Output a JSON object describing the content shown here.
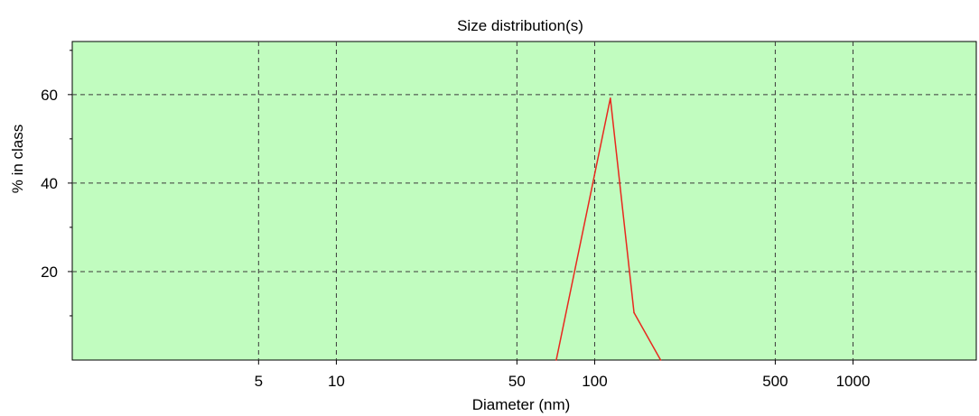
{
  "chart_data": {
    "type": "line",
    "title": "Size distribution(s)",
    "xlabel": "Diameter (nm)",
    "ylabel": "% in class",
    "x_scale": "log",
    "xlim": [
      0.95,
      3000
    ],
    "ylim": [
      0,
      72
    ],
    "x_ticks": [
      5,
      10,
      50,
      100,
      500,
      1000
    ],
    "x_tick_labels": [
      "5",
      "10",
      "50",
      "100",
      "500",
      "1000"
    ],
    "y_ticks": [
      20,
      40,
      60
    ],
    "y_tick_labels": [
      "20",
      "40",
      "60"
    ],
    "y_minor_ticks": [
      10,
      30,
      50,
      70
    ],
    "grid": true,
    "plot_background": "#c1fcbf",
    "series": [
      {
        "color": "#e8281e",
        "x": [
          71,
          115,
          142,
          180
        ],
        "y": [
          0,
          59.2,
          10.7,
          0
        ]
      }
    ]
  }
}
